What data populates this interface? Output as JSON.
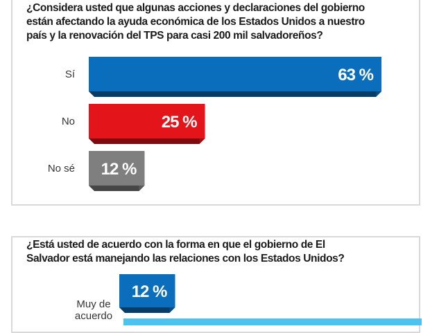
{
  "chart_data": [
    {
      "type": "bar",
      "orientation": "horizontal",
      "title_lines": [
        "¿Considera usted que algunas acciones y declaraciones del gobierno",
        "están afectando la ayuda económica de los Estados Unidos a nuestro",
        "país y la renovación del TPS para casi 200 mil salvadoreños?"
      ],
      "categories": [
        "Sí",
        "No",
        "No sé"
      ],
      "values": [
        63,
        25,
        12
      ],
      "value_labels": [
        "63 %",
        "25 %",
        "12 %"
      ],
      "colors": [
        "#0a6ebd",
        "#e4141b",
        "#7f7f7f"
      ],
      "xlim": [
        0,
        63
      ],
      "grid": false,
      "legend": "none"
    },
    {
      "type": "bar",
      "orientation": "horizontal",
      "title_lines": [
        "¿Está usted de acuerdo con la forma en que el gobierno de El",
        "Salvador está manejando las relaciones con los Estados Unidos?"
      ],
      "categories": [
        "Muy de acuerdo"
      ],
      "category_label_lines": [
        [
          "Muy de",
          "acuerdo"
        ]
      ],
      "values": [
        12
      ],
      "value_labels": [
        "12 %"
      ],
      "colors": [
        "#0a6ebd",
        "#4cc3ee"
      ],
      "grid": false,
      "legend": "none"
    }
  ]
}
